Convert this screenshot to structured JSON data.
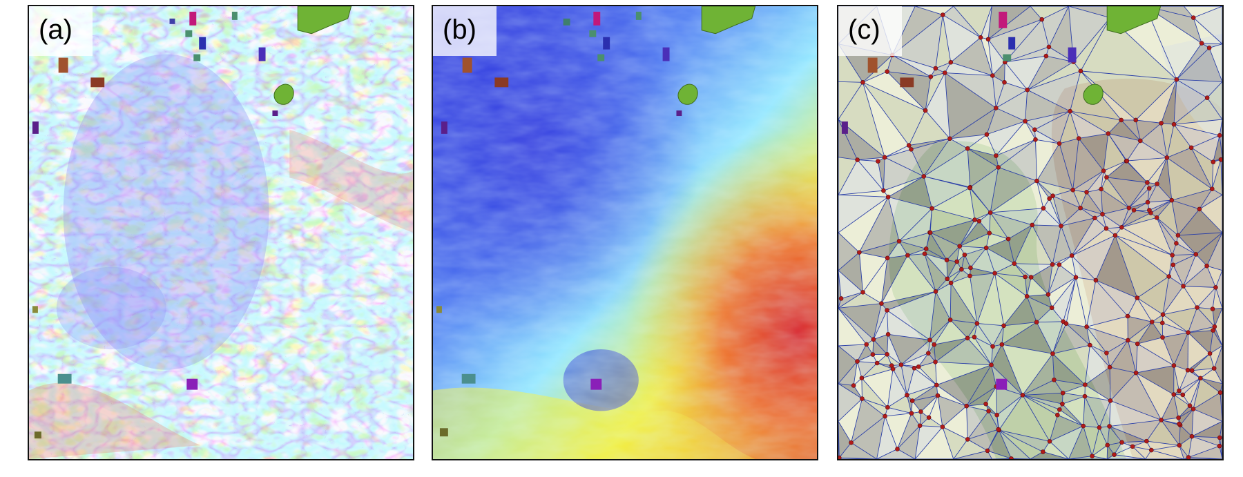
{
  "panels": [
    {
      "id": "a",
      "label": "(a)",
      "content": "slope-map"
    },
    {
      "id": "b",
      "label": "(b)",
      "content": "elevation-map"
    },
    {
      "id": "c",
      "label": "(c)",
      "content": "triangulated-network"
    }
  ],
  "colors": {
    "slope_low": "#8f8ef7",
    "slope_mid": "#a8f2ff",
    "slope_high": "#f6f3a0",
    "slope_steep": "#e88c7a",
    "elev_low": "#2a2fdc",
    "elev_mid": "#8fe6ff",
    "elev_high": "#f2ef3a",
    "elev_peak": "#d8232a",
    "tin_edge": "#2a3fa8",
    "tin_node": "#b11a1a",
    "feature_green": "#6fb335",
    "feature_purple": "#7a1fa8"
  }
}
